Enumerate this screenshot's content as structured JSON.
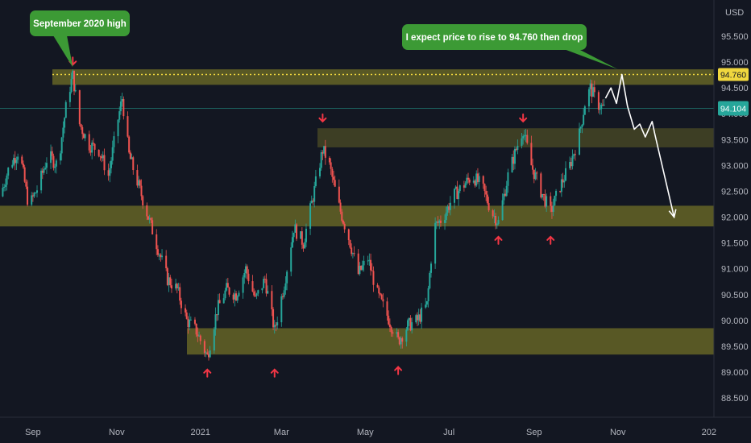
{
  "chart_data": {
    "type": "candlestick",
    "currency": "USD",
    "y_ticks": [
      "95.500",
      "95.000",
      "94.500",
      "94.000",
      "93.500",
      "93.000",
      "92.500",
      "92.000",
      "91.500",
      "91.000",
      "90.500",
      "90.000",
      "89.500",
      "89.000",
      "88.500"
    ],
    "y_tick_values": [
      95.5,
      95.0,
      94.5,
      94.0,
      93.5,
      93.0,
      92.5,
      92.0,
      91.5,
      91.0,
      90.5,
      90.0,
      89.5,
      89.0,
      88.5
    ],
    "ylim": [
      88.2,
      96.0
    ],
    "x_ticks": [
      "Sep",
      "Nov",
      "2021",
      "Mar",
      "May",
      "Jul",
      "Sep",
      "Nov",
      "202"
    ],
    "x_tick_values": [
      "2020-09-01",
      "2020-11-01",
      "2021-01-01",
      "2021-03-01",
      "2021-05-01",
      "2021-07-01",
      "2021-09-01",
      "2021-11-01",
      "2022-01-01"
    ],
    "xlim": [
      "2020-08-08",
      "2022-01-10"
    ],
    "zones": [
      {
        "from": 94.56,
        "to": 94.86
      },
      {
        "from": 93.35,
        "to": 93.72
      },
      {
        "from": 91.82,
        "to": 92.22
      },
      {
        "from": 89.34,
        "to": 89.85
      }
    ],
    "target_level": {
      "value": 94.76,
      "label": "94.760"
    },
    "current_price": {
      "value": 94.104,
      "label": "94.104"
    },
    "price_path": [
      [
        "2020-08-08",
        92.4
      ],
      [
        "2020-08-15",
        93.0
      ],
      [
        "2020-08-22",
        93.3
      ],
      [
        "2020-08-29",
        92.2
      ],
      [
        "2020-09-05",
        92.6
      ],
      [
        "2020-09-12",
        93.2
      ],
      [
        "2020-09-19",
        93.0
      ],
      [
        "2020-09-26",
        94.3
      ],
      [
        "2020-09-30",
        94.74
      ],
      [
        "2020-10-05",
        93.8
      ],
      [
        "2020-10-12",
        93.4
      ],
      [
        "2020-10-19",
        93.3
      ],
      [
        "2020-10-26",
        92.8
      ],
      [
        "2020-11-02",
        93.9
      ],
      [
        "2020-11-05",
        94.3
      ],
      [
        "2020-11-10",
        93.2
      ],
      [
        "2020-11-17",
        92.6
      ],
      [
        "2020-11-24",
        92.0
      ],
      [
        "2020-12-01",
        91.4
      ],
      [
        "2020-12-08",
        90.8
      ],
      [
        "2020-12-15",
        90.6
      ],
      [
        "2020-12-22",
        90.0
      ],
      [
        "2020-12-29",
        89.8
      ],
      [
        "2021-01-06",
        89.3
      ],
      [
        "2021-01-13",
        90.2
      ],
      [
        "2021-01-20",
        90.6
      ],
      [
        "2021-01-27",
        90.5
      ],
      [
        "2021-02-03",
        91.0
      ],
      [
        "2021-02-10",
        90.4
      ],
      [
        "2021-02-17",
        90.8
      ],
      [
        "2021-02-24",
        89.8
      ],
      [
        "2021-03-03",
        90.7
      ],
      [
        "2021-03-10",
        91.8
      ],
      [
        "2021-03-17",
        91.5
      ],
      [
        "2021-03-24",
        92.4
      ],
      [
        "2021-03-31",
        93.3
      ],
      [
        "2021-04-04",
        93.1
      ],
      [
        "2021-04-12",
        92.2
      ],
      [
        "2021-04-19",
        91.6
      ],
      [
        "2021-04-26",
        90.9
      ],
      [
        "2021-05-03",
        91.2
      ],
      [
        "2021-05-10",
        90.5
      ],
      [
        "2021-05-17",
        90.1
      ],
      [
        "2021-05-25",
        89.6
      ],
      [
        "2021-06-01",
        89.9
      ],
      [
        "2021-06-08",
        90.0
      ],
      [
        "2021-06-15",
        90.3
      ],
      [
        "2021-06-20",
        91.8
      ],
      [
        "2021-06-27",
        92.0
      ],
      [
        "2021-07-04",
        92.4
      ],
      [
        "2021-07-11",
        92.6
      ],
      [
        "2021-07-18",
        92.8
      ],
      [
        "2021-07-25",
        92.6
      ],
      [
        "2021-08-01",
        92.1
      ],
      [
        "2021-08-06",
        91.9
      ],
      [
        "2021-08-13",
        92.8
      ],
      [
        "2021-08-20",
        93.4
      ],
      [
        "2021-08-24",
        93.7
      ],
      [
        "2021-08-30",
        93.0
      ],
      [
        "2021-09-06",
        92.5
      ],
      [
        "2021-09-13",
        92.1
      ],
      [
        "2021-09-20",
        92.6
      ],
      [
        "2021-09-27",
        93.0
      ],
      [
        "2021-10-04",
        93.6
      ],
      [
        "2021-10-08",
        94.2
      ],
      [
        "2021-10-12",
        94.5
      ],
      [
        "2021-10-17",
        94.2
      ],
      [
        "2021-10-22",
        94.1
      ]
    ],
    "projection": [
      [
        "2021-10-23",
        94.3
      ],
      [
        "2021-10-27",
        94.5
      ],
      [
        "2021-10-31",
        94.2
      ],
      [
        "2021-11-04",
        94.76
      ],
      [
        "2021-11-08",
        94.15
      ],
      [
        "2021-11-13",
        93.7
      ],
      [
        "2021-11-17",
        93.8
      ],
      [
        "2021-11-21",
        93.55
      ],
      [
        "2021-11-26",
        93.85
      ],
      [
        "2021-11-28",
        93.6
      ],
      [
        "2021-12-12",
        92.0
      ]
    ],
    "markers_down": [
      [
        "2020-09-30",
        94.95
      ],
      [
        "2021-03-31",
        93.85
      ],
      [
        "2021-08-24",
        93.85
      ]
    ],
    "markers_up": [
      [
        "2021-01-06",
        89.05
      ],
      [
        "2021-02-24",
        89.05
      ],
      [
        "2021-05-25",
        89.1
      ],
      [
        "2021-08-06",
        91.62
      ],
      [
        "2021-09-13",
        91.62
      ]
    ],
    "annotations": [
      {
        "text": "September 2020 high",
        "target": [
          "2020-09-30",
          94.9
        ]
      },
      {
        "text": "I expect price to rise to 94.760 then drop",
        "target": [
          "2021-11-01",
          94.86
        ]
      }
    ],
    "colors": {
      "up": "#26a69a",
      "down": "#ef5350",
      "zone": "#706f27",
      "target": "#f0d73e",
      "current": "#26a69a",
      "bubble": "#3c9a35",
      "arrow": "#f23645",
      "background": "#131722"
    }
  }
}
